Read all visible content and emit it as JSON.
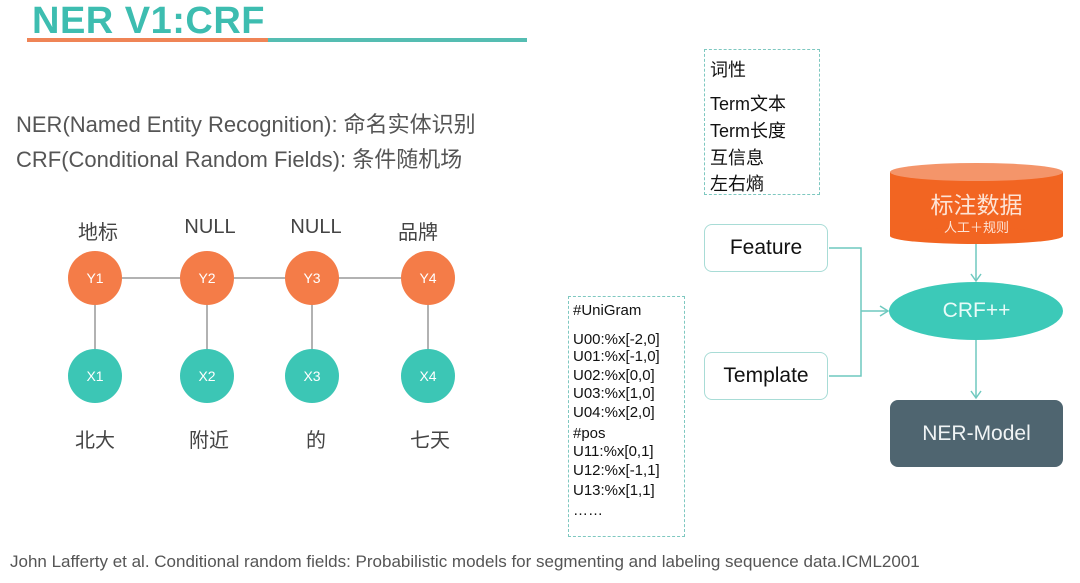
{
  "title": "NER V1:CRF",
  "colors": {
    "teal": "#3dbdb0",
    "orange": "#f47c48",
    "cylinder": "#f26522",
    "model": "#4f6570"
  },
  "definitions": [
    "NER(Named Entity Recognition): 命名实体识别",
    "CRF(Conditional Random Fields): 条件随机场"
  ],
  "chain": {
    "labels": [
      "地标",
      "NULL",
      "NULL",
      "品牌"
    ],
    "y_nodes": [
      "Y1",
      "Y2",
      "Y3",
      "Y4"
    ],
    "x_nodes": [
      "X1",
      "X2",
      "X3",
      "X4"
    ],
    "words": [
      "北大",
      "附近",
      "的",
      "七天"
    ]
  },
  "features_list": [
    "词性",
    "Term文本",
    "Term长度",
    "互信息",
    "左右熵"
  ],
  "template_list": [
    "#UniGram",
    "U00:%x[-2,0]",
    "U01:%x[-1,0]",
    "U02:%x[0,0]",
    "U03:%x[1,0]",
    "U04:%x[2,0]",
    "#pos",
    "U11:%x[0,1]",
    "U12:%x[-1,1]",
    "U13:%x[1,1]",
    "……"
  ],
  "flow": {
    "feature": "Feature",
    "template": "Template",
    "data_title": "标注数据",
    "data_sub": "人工＋规则",
    "crf": "CRF++",
    "model": "NER-Model"
  },
  "footer": "John Lafferty et al. Conditional random fields: Probabilistic models for segmenting and labeling sequence data.ICML2001"
}
